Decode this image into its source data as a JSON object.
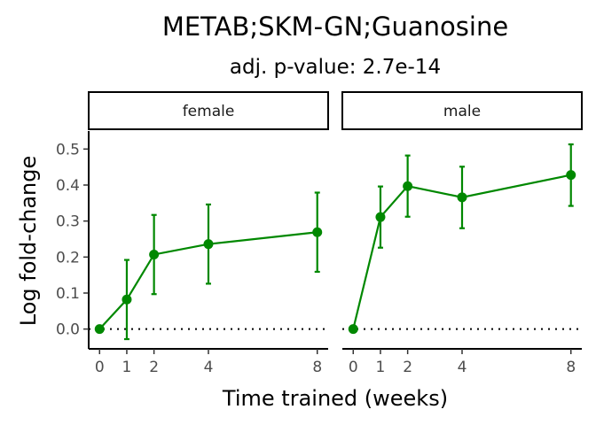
{
  "chart_data": {
    "type": "line",
    "title": "METAB;SKM-GN;Guanosine",
    "subtitle": "adj. p-value: 2.7e-14",
    "xlabel": "Time trained (weeks)",
    "ylabel": "Log fold-change",
    "x_ticks": [
      0,
      1,
      2,
      4,
      8
    ],
    "y_ticks": [
      0.0,
      0.1,
      0.2,
      0.3,
      0.4,
      0.5
    ],
    "y_tick_labels": [
      "0.0",
      "0.1",
      "0.2",
      "0.3",
      "0.4",
      "0.5"
    ],
    "xlim": [
      -0.4,
      8.4
    ],
    "ylim": [
      -0.055,
      0.55
    ],
    "reference_line_y": 0,
    "color": "#008800",
    "grid": false,
    "panels": [
      {
        "name": "female",
        "x": [
          0,
          1,
          2,
          4,
          8
        ],
        "y": [
          0.0,
          0.082,
          0.207,
          0.236,
          0.269
        ],
        "lower": [
          0.0,
          -0.028,
          0.097,
          0.126,
          0.159
        ],
        "upper": [
          0.0,
          0.192,
          0.317,
          0.346,
          0.379
        ]
      },
      {
        "name": "male",
        "x": [
          0,
          1,
          2,
          4,
          8
        ],
        "y": [
          0.0,
          0.311,
          0.397,
          0.366,
          0.428
        ],
        "lower": [
          0.0,
          0.226,
          0.312,
          0.28,
          0.342
        ],
        "upper": [
          0.0,
          0.396,
          0.482,
          0.451,
          0.513
        ]
      }
    ]
  }
}
